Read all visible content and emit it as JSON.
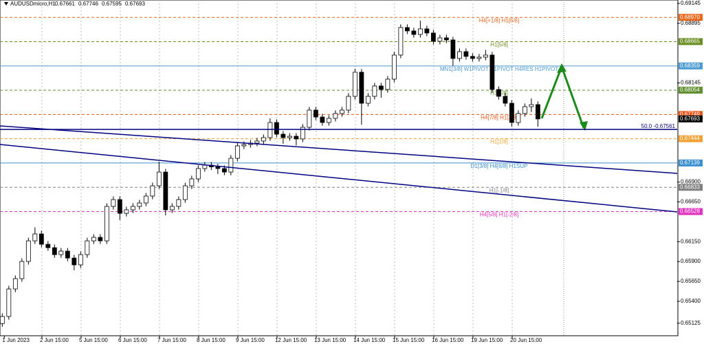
{
  "header": {
    "title": "AUDUSDmicro,H1",
    "values": [
      0.67661,
      0.67746,
      0.67595,
      0.67693
    ]
  },
  "chart_data": {
    "type": "candlestick",
    "x": [
      16,
      20,
      24,
      28,
      32,
      36,
      40,
      44,
      48,
      52,
      56,
      60,
      64,
      68,
      72,
      76,
      80,
      84,
      88,
      92,
      96,
      100,
      104,
      108,
      112,
      116,
      120,
      124,
      128,
      132,
      136,
      140,
      144,
      148,
      152,
      156,
      160,
      164,
      168,
      172,
      176,
      180,
      184,
      188,
      192,
      196,
      200,
      204,
      208,
      212,
      216,
      220,
      224,
      228,
      232,
      236,
      240,
      244,
      248,
      252,
      256,
      260,
      264,
      268,
      272,
      276,
      280,
      284,
      288,
      292,
      296,
      300,
      304,
      308,
      312,
      316,
      320,
      324,
      328,
      332,
      336,
      340,
      344
    ],
    "open": [
      0.6512,
      0.65209,
      0.65555,
      0.65685,
      0.65901,
      0.6616,
      0.66247,
      0.66117,
      0.66074,
      0.65987,
      0.66031,
      0.65944,
      0.65858,
      0.65987,
      0.6616,
      0.66204,
      0.6616,
      0.66593,
      0.66679,
      0.66506,
      0.6655,
      0.66593,
      0.66636,
      0.66723,
      0.66852,
      0.67025,
      0.6655,
      0.66593,
      0.66679,
      0.66852,
      0.66939,
      0.67069,
      0.67112,
      0.6709,
      0.67069,
      0.67025,
      0.67198,
      0.67354,
      0.67371,
      0.67389,
      0.67415,
      0.67458,
      0.67648,
      0.67501,
      0.67458,
      0.67475,
      0.67441,
      0.67588,
      0.67804,
      0.67717,
      0.67648,
      0.677,
      0.67761,
      0.67804,
      0.67977,
      0.6828,
      0.6789,
      0.67977,
      0.68107,
      0.68063,
      0.68193,
      0.68496,
      0.68842,
      0.68799,
      0.68755,
      0.68825,
      0.68773,
      0.68669,
      0.68712,
      0.68686,
      0.68453,
      0.68539,
      0.68479,
      0.68453,
      0.6847,
      0.68496,
      0.68063,
      0.67977,
      0.6789,
      0.67648,
      0.67761,
      0.67847,
      0.67873
    ],
    "high": [
      0.65249,
      0.65595,
      0.65725,
      0.65941,
      0.662,
      0.6633,
      0.66287,
      0.66157,
      0.66114,
      0.66071,
      0.66071,
      0.65984,
      0.66027,
      0.662,
      0.66244,
      0.66244,
      0.66633,
      0.66719,
      0.66719,
      0.6659,
      0.66633,
      0.66676,
      0.66763,
      0.66892,
      0.67155,
      0.67065,
      0.66633,
      0.66719,
      0.66892,
      0.66979,
      0.67109,
      0.67152,
      0.67152,
      0.6713,
      0.67109,
      0.67238,
      0.67394,
      0.67411,
      0.67429,
      0.67455,
      0.67498,
      0.677,
      0.67688,
      0.67541,
      0.67515,
      0.67515,
      0.67628,
      0.67844,
      0.67844,
      0.67757,
      0.6774,
      0.67801,
      0.67844,
      0.68017,
      0.68323,
      0.6832,
      0.68017,
      0.68147,
      0.68147,
      0.68233,
      0.68536,
      0.68882,
      0.68882,
      0.68839,
      0.68928,
      0.68865,
      0.68813,
      0.68752,
      0.68752,
      0.68726,
      0.68579,
      0.68579,
      0.68519,
      0.6851,
      0.6856,
      0.68536,
      0.68103,
      0.68017,
      0.6793,
      0.67801,
      0.67887,
      0.6795,
      0.67913
    ],
    "low": [
      0.6508,
      0.65169,
      0.65515,
      0.65645,
      0.65861,
      0.6612,
      0.66077,
      0.66034,
      0.65947,
      0.65947,
      0.65904,
      0.6579,
      0.65818,
      0.65947,
      0.6612,
      0.6612,
      0.6612,
      0.66553,
      0.6642,
      0.66466,
      0.6651,
      0.66553,
      0.66596,
      0.66683,
      0.66812,
      0.6648,
      0.6651,
      0.66553,
      0.66639,
      0.66812,
      0.66899,
      0.67029,
      0.6705,
      0.67,
      0.66985,
      0.66985,
      0.67158,
      0.67314,
      0.67331,
      0.67349,
      0.67375,
      0.67418,
      0.67461,
      0.6738,
      0.67418,
      0.6736,
      0.67401,
      0.67548,
      0.67677,
      0.67608,
      0.67608,
      0.6766,
      0.67721,
      0.67764,
      0.67937,
      0.6762,
      0.6785,
      0.67937,
      0.6796,
      0.68023,
      0.68153,
      0.68456,
      0.68759,
      0.68715,
      0.68715,
      0.68733,
      0.68629,
      0.68629,
      0.68646,
      0.6836,
      0.68413,
      0.68439,
      0.68413,
      0.68413,
      0.6843,
      0.68023,
      0.67937,
      0.6785,
      0.67595,
      0.67608,
      0.67721,
      0.6778,
      0.67595
    ],
    "close": [
      0.65209,
      0.65555,
      0.65685,
      0.65901,
      0.6616,
      0.66247,
      0.66117,
      0.66074,
      0.65987,
      0.66031,
      0.65944,
      0.65858,
      0.65987,
      0.6616,
      0.66204,
      0.6616,
      0.66593,
      0.66679,
      0.66506,
      0.6655,
      0.66593,
      0.66636,
      0.66723,
      0.66852,
      0.67025,
      0.6655,
      0.66593,
      0.66679,
      0.66852,
      0.66939,
      0.67069,
      0.67112,
      0.6709,
      0.67069,
      0.67025,
      0.67198,
      0.67354,
      0.67371,
      0.67389,
      0.67415,
      0.67458,
      0.67648,
      0.67501,
      0.67458,
      0.67475,
      0.67441,
      0.67588,
      0.67804,
      0.67717,
      0.67648,
      0.677,
      0.67761,
      0.67804,
      0.67977,
      0.6828,
      0.6789,
      0.67977,
      0.68107,
      0.68063,
      0.68193,
      0.68496,
      0.68842,
      0.68799,
      0.68755,
      0.68825,
      0.68773,
      0.68669,
      0.68712,
      0.68686,
      0.68453,
      0.68539,
      0.68479,
      0.68453,
      0.6847,
      0.68496,
      0.68063,
      0.67977,
      0.6789,
      0.67648,
      0.67761,
      0.67847,
      0.67873,
      0.67693
    ],
    "up_color": "#ffffff",
    "down_color": "#000000",
    "wick_color": "#000000",
    "xlim": [
      14.6,
      429.3
    ],
    "xticks": [
      {
        "value": 16,
        "label": "1 Jun 2023"
      },
      {
        "value": 39,
        "label": "2 Jun 15:00"
      },
      {
        "value": 63,
        "label": "5 Jun 15:00"
      },
      {
        "value": 87,
        "label": "6 Jun 15:00"
      },
      {
        "value": 111,
        "label": "7 Jun 15:00"
      },
      {
        "value": 135,
        "label": "8 Jun 15:00"
      },
      {
        "value": 159,
        "label": "9 Jun 15:00"
      },
      {
        "value": 183,
        "label": "12 Jun 15:00"
      },
      {
        "value": 207,
        "label": "13 Jun 15:00"
      },
      {
        "value": 231,
        "label": "14 Jun 15:00"
      },
      {
        "value": 255,
        "label": "15 Jun 15:00"
      },
      {
        "value": 279,
        "label": "16 Jun 15:00"
      },
      {
        "value": 303,
        "label": "19 Jun 15:00"
      },
      {
        "value": 327,
        "label": "20 Jun 15:00"
      }
    ],
    "ylim": [
      0.64967,
      0.69188
    ],
    "yticks": [
      0.69145,
      0.68895,
      0.68145,
      {
        "value": 0.669,
        "label": "0.66900"
      },
      {
        "value": 0.6665,
        "label": "0.66650"
      },
      {
        "value": 0.6615,
        "label": "0.66150"
      },
      {
        "value": 0.659,
        "label": "0.65900"
      },
      {
        "value": 0.6565,
        "label": "0.65650"
      },
      {
        "value": 0.654,
        "label": "0.65400"
      },
      0.65125
    ],
    "levels": [
      {
        "name": "H4[+1/8] H1[6/8]",
        "value": 0.6897,
        "value_label": "0.68970",
        "color": "#e8661a",
        "dashed": true
      },
      {
        "name": "H1[5/8]",
        "value": 0.68665,
        "color": "#6b8e23",
        "dashed": true
      },
      {
        "name": "MN1[3/8] W1PIVOT D1PIVOT H4RES H1PIVOT",
        "value": 0.68359,
        "color": "#4a9ad4",
        "dashed": false
      },
      {
        "name": "H1[4/8]",
        "value": 0.68054,
        "color": "#5f8f2f",
        "dashed": true
      },
      {
        "name": "H4[7/8] H1[3/8]",
        "value": 0.67749,
        "color": "#e8551a",
        "dashed": true
      },
      {
        "name": "H1[1/8]",
        "value": 0.67444,
        "color": "#f0a030",
        "dashed": true
      },
      {
        "name": "D1[3/8] H4[6/8] H1SUP",
        "value": 0.67139,
        "color": "#3a8fd0",
        "dashed": false
      },
      {
        "name": "H1[-1/8]",
        "value": 0.66833,
        "color": "#808080",
        "dashed": true
      },
      {
        "name": "H4[5/8] H1[-2/8]",
        "value": 0.66528,
        "color": "#e030c0",
        "dashed": true
      }
    ],
    "fib_line": {
      "label": "50.0 -0.67561",
      "value": 0.67561,
      "color": "#000080"
    }
  }
}
